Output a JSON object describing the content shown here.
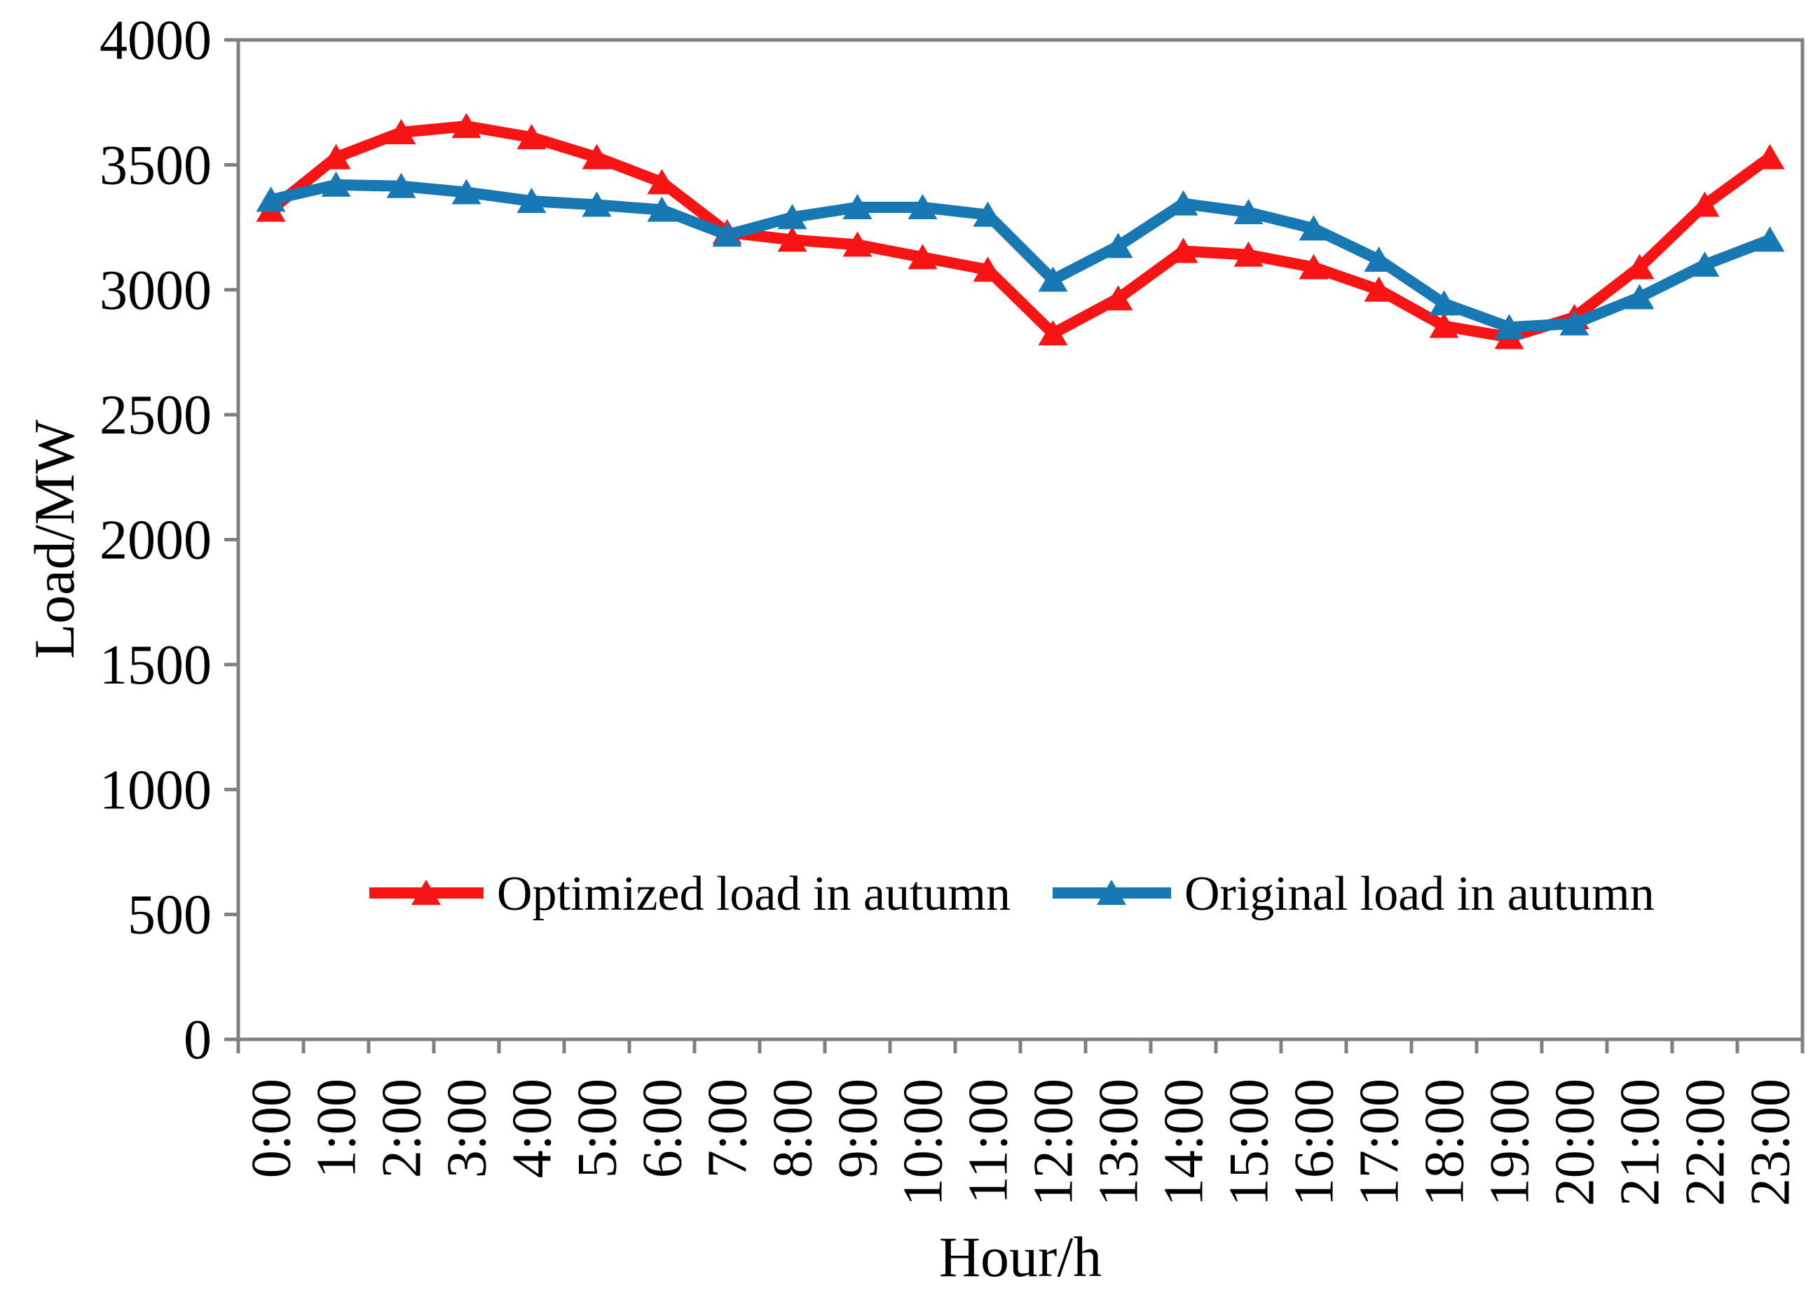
{
  "axes": {
    "y_title": "Load/MW",
    "x_title": "Hour/h"
  },
  "legend": [
    {
      "label": "Optimized load in autumn",
      "color": "#F81414"
    },
    {
      "label": "Original load in autumn",
      "color": "#1878B4"
    }
  ],
  "chart_data": {
    "type": "line",
    "title": "",
    "xlabel": "Hour/h",
    "ylabel": "Load/MW",
    "categories": [
      "0:00",
      "1:00",
      "2:00",
      "3:00",
      "4:00",
      "5:00",
      "6:00",
      "7:00",
      "8:00",
      "9:00",
      "10:00",
      "11:00",
      "12:00",
      "13:00",
      "14:00",
      "15:00",
      "16:00",
      "17:00",
      "18:00",
      "19:00",
      "20:00",
      "21:00",
      "22:00",
      "23:00"
    ],
    "series": [
      {
        "name": "Optimized load in autumn",
        "color": "#F81414",
        "marker": "triangle",
        "values": [
          3320,
          3530,
          3630,
          3655,
          3610,
          3530,
          3430,
          3230,
          3200,
          3180,
          3130,
          3080,
          2825,
          2965,
          3155,
          3140,
          3090,
          3000,
          2855,
          2810,
          2890,
          3090,
          3340,
          3530
        ]
      },
      {
        "name": "Original load in autumn",
        "color": "#1878B4",
        "marker": "triangle",
        "values": [
          3360,
          3420,
          3415,
          3390,
          3355,
          3340,
          3320,
          3220,
          3290,
          3330,
          3330,
          3300,
          3040,
          3175,
          3345,
          3310,
          3245,
          3120,
          2945,
          2850,
          2865,
          2970,
          3100,
          3200
        ]
      }
    ],
    "ylim": [
      0,
      4000
    ],
    "ytick_step": 500,
    "yticks": [
      0,
      500,
      1000,
      1500,
      2000,
      2500,
      3000,
      3500,
      4000
    ],
    "grid": false,
    "legend_position": "inside-bottom-center",
    "axis_color": "#7F7F7F",
    "text_color": "#000000"
  }
}
